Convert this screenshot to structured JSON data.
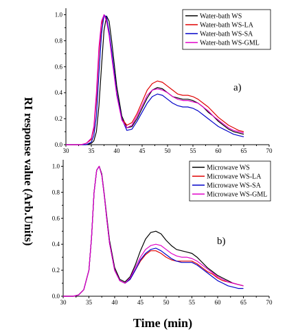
{
  "ylabel": "RI response value (Arb.Units)",
  "xlabel": "Time (min)",
  "chart_data": [
    {
      "type": "line",
      "panel_label": "a)",
      "xlim": [
        30,
        70
      ],
      "ylim": [
        0.0,
        1.05
      ],
      "x_ticks": [
        "30",
        "35",
        "40",
        "45",
        "50",
        "55",
        "60",
        "65",
        "70"
      ],
      "y_ticks": [
        "0.0",
        "0.2",
        "0.4",
        "0.6",
        "0.8",
        "1.0"
      ],
      "legend_position": "top-right",
      "x": [
        30,
        31,
        32,
        33,
        34,
        35,
        35.5,
        36,
        36.5,
        37,
        37.5,
        38,
        38.5,
        39,
        40,
        41,
        42,
        43,
        44,
        45,
        46,
        47,
        48,
        49,
        50,
        51,
        52,
        53,
        54,
        55,
        56,
        57,
        58,
        59,
        60,
        61,
        62,
        63,
        64,
        65
      ],
      "series": [
        {
          "name": "Water-bath WS",
          "color": "#000000",
          "values": [
            0,
            0,
            0,
            0,
            0,
            0.01,
            0.03,
            0.1,
            0.3,
            0.6,
            0.88,
            0.99,
            0.95,
            0.8,
            0.45,
            0.22,
            0.13,
            0.14,
            0.2,
            0.28,
            0.36,
            0.42,
            0.44,
            0.43,
            0.4,
            0.37,
            0.36,
            0.35,
            0.35,
            0.34,
            0.32,
            0.29,
            0.25,
            0.22,
            0.18,
            0.15,
            0.12,
            0.1,
            0.09,
            0.08
          ]
        },
        {
          "name": "Water-bath WS-LA",
          "color": "#e00000",
          "values": [
            0,
            0,
            0,
            0,
            0.01,
            0.04,
            0.12,
            0.35,
            0.7,
            0.92,
            1.0,
            0.96,
            0.85,
            0.7,
            0.4,
            0.2,
            0.15,
            0.17,
            0.24,
            0.33,
            0.42,
            0.47,
            0.49,
            0.48,
            0.45,
            0.42,
            0.39,
            0.38,
            0.38,
            0.37,
            0.35,
            0.32,
            0.29,
            0.25,
            0.21,
            0.18,
            0.15,
            0.13,
            0.11,
            0.1
          ]
        },
        {
          "name": "Water-bath WS-SA",
          "color": "#0000c8",
          "values": [
            0,
            0,
            0,
            0,
            0,
            0.02,
            0.07,
            0.22,
            0.55,
            0.85,
            1.0,
            0.98,
            0.87,
            0.72,
            0.4,
            0.2,
            0.11,
            0.12,
            0.18,
            0.25,
            0.32,
            0.37,
            0.39,
            0.38,
            0.35,
            0.32,
            0.3,
            0.29,
            0.29,
            0.28,
            0.26,
            0.23,
            0.2,
            0.17,
            0.14,
            0.12,
            0.1,
            0.08,
            0.07,
            0.06
          ]
        },
        {
          "name": "Water-bath WS-GML",
          "color": "#e000c8",
          "values": [
            0,
            0,
            0,
            0,
            0.01,
            0.05,
            0.14,
            0.4,
            0.75,
            0.95,
            1.0,
            0.95,
            0.84,
            0.68,
            0.38,
            0.19,
            0.13,
            0.15,
            0.22,
            0.3,
            0.38,
            0.42,
            0.43,
            0.42,
            0.4,
            0.37,
            0.35,
            0.34,
            0.34,
            0.33,
            0.32,
            0.29,
            0.26,
            0.22,
            0.19,
            0.16,
            0.13,
            0.11,
            0.1,
            0.09
          ]
        }
      ]
    },
    {
      "type": "line",
      "panel_label": "b)",
      "xlim": [
        30,
        70
      ],
      "ylim": [
        0.0,
        1.05
      ],
      "x_ticks": [
        "30",
        "35",
        "40",
        "45",
        "50",
        "55",
        "60",
        "65",
        "70"
      ],
      "y_ticks": [
        "0.0",
        "0.2",
        "0.4",
        "0.6",
        "0.8",
        "1.0"
      ],
      "legend_position": "top-right",
      "x": [
        30,
        31,
        32,
        33,
        34,
        35,
        35.5,
        36,
        36.5,
        37,
        37.5,
        38,
        38.5,
        39,
        40,
        41,
        42,
        43,
        44,
        45,
        46,
        47,
        48,
        49,
        50,
        51,
        52,
        53,
        54,
        55,
        56,
        57,
        58,
        59,
        60,
        61,
        62,
        63,
        64,
        65
      ],
      "series": [
        {
          "name": "Microwave WS",
          "color": "#000000",
          "values": [
            0,
            0,
            0,
            0.01,
            0.05,
            0.2,
            0.45,
            0.8,
            0.97,
            1.0,
            0.94,
            0.78,
            0.6,
            0.43,
            0.22,
            0.13,
            0.11,
            0.15,
            0.24,
            0.35,
            0.44,
            0.49,
            0.5,
            0.48,
            0.43,
            0.39,
            0.36,
            0.35,
            0.34,
            0.33,
            0.3,
            0.26,
            0.22,
            0.19,
            0.16,
            0.14,
            0.12,
            0.1,
            0.09,
            0.08
          ]
        },
        {
          "name": "Microwave WS-LA",
          "color": "#e00000",
          "values": [
            0,
            0,
            0,
            0.01,
            0.05,
            0.2,
            0.45,
            0.8,
            0.97,
            1.0,
            0.93,
            0.77,
            0.58,
            0.41,
            0.2,
            0.12,
            0.1,
            0.13,
            0.2,
            0.27,
            0.32,
            0.35,
            0.35,
            0.33,
            0.3,
            0.28,
            0.27,
            0.27,
            0.27,
            0.27,
            0.25,
            0.22,
            0.19,
            0.17,
            0.14,
            0.12,
            0.11,
            0.1,
            0.09,
            0.08
          ]
        },
        {
          "name": "Microwave WS-SA",
          "color": "#0000c8",
          "values": [
            0,
            0,
            0,
            0.01,
            0.05,
            0.2,
            0.45,
            0.8,
            0.97,
            1.0,
            0.93,
            0.77,
            0.58,
            0.41,
            0.2,
            0.12,
            0.1,
            0.13,
            0.2,
            0.28,
            0.33,
            0.36,
            0.37,
            0.35,
            0.32,
            0.29,
            0.27,
            0.26,
            0.26,
            0.26,
            0.24,
            0.21,
            0.18,
            0.15,
            0.12,
            0.1,
            0.08,
            0.07,
            0.06,
            0.06
          ]
        },
        {
          "name": "Microwave WS-GML",
          "color": "#e000c8",
          "values": [
            0,
            0,
            0,
            0.01,
            0.05,
            0.2,
            0.45,
            0.8,
            0.97,
            1.0,
            0.93,
            0.77,
            0.58,
            0.41,
            0.2,
            0.12,
            0.1,
            0.14,
            0.22,
            0.3,
            0.36,
            0.39,
            0.4,
            0.39,
            0.36,
            0.33,
            0.31,
            0.3,
            0.3,
            0.29,
            0.27,
            0.24,
            0.21,
            0.18,
            0.15,
            0.13,
            0.11,
            0.1,
            0.09,
            0.08
          ]
        }
      ]
    }
  ]
}
